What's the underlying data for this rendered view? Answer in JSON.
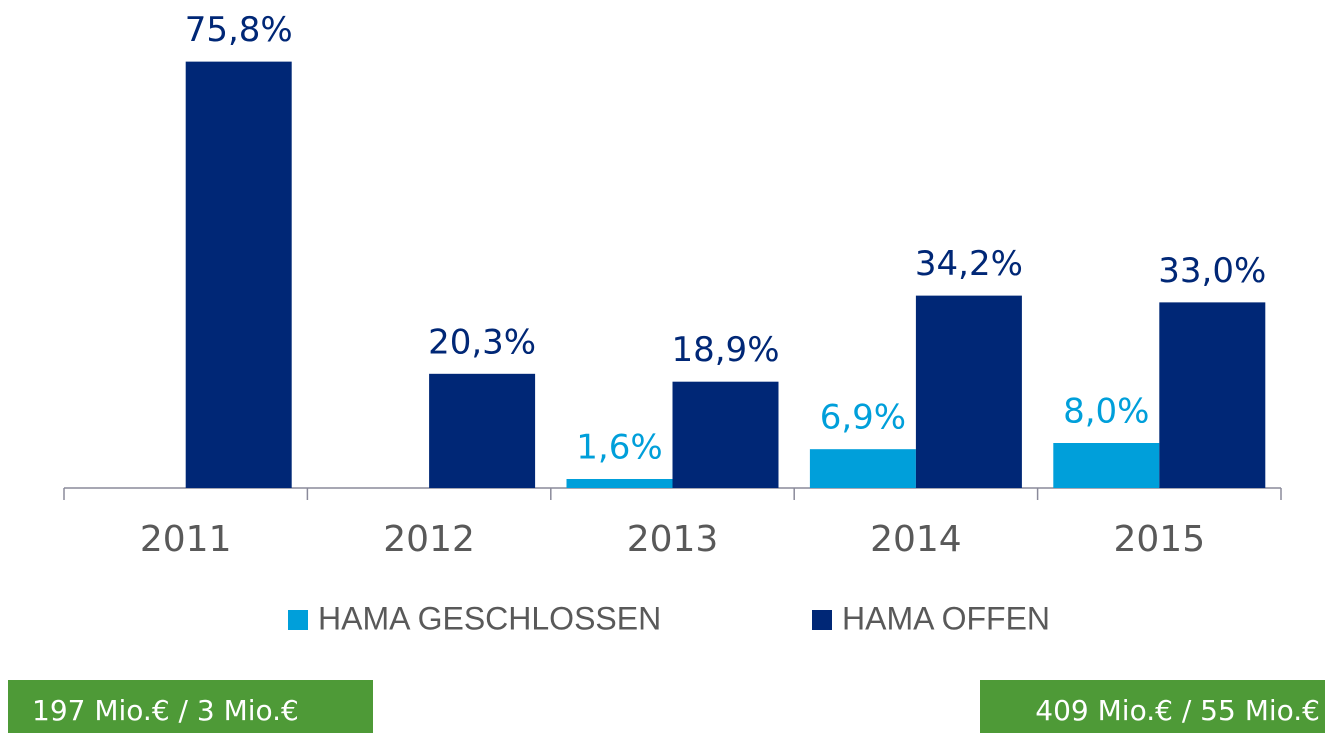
{
  "chart_data": {
    "type": "bar",
    "categories": [
      "2011",
      "2012",
      "2013",
      "2014",
      "2015"
    ],
    "series": [
      {
        "name": "HAMA GESCHLOSSEN",
        "color": "#009fda",
        "values": [
          null,
          null,
          1.6,
          6.9,
          8.0
        ],
        "value_labels": [
          null,
          null,
          "1,6%",
          "6,9%",
          "8,0%"
        ]
      },
      {
        "name": "HAMA OFFEN",
        "color": "#002776",
        "values": [
          75.8,
          20.3,
          18.9,
          34.2,
          33.0
        ],
        "value_labels": [
          "75,8%",
          "20,3%",
          "18,9%",
          "34,2%",
          "33,0%"
        ]
      }
    ],
    "ylim": [
      0,
      80
    ],
    "annotations": [
      "197 Mio.€ / 3 Mio.€",
      "409 Mio.€ / 55 Mio.€"
    ]
  }
}
